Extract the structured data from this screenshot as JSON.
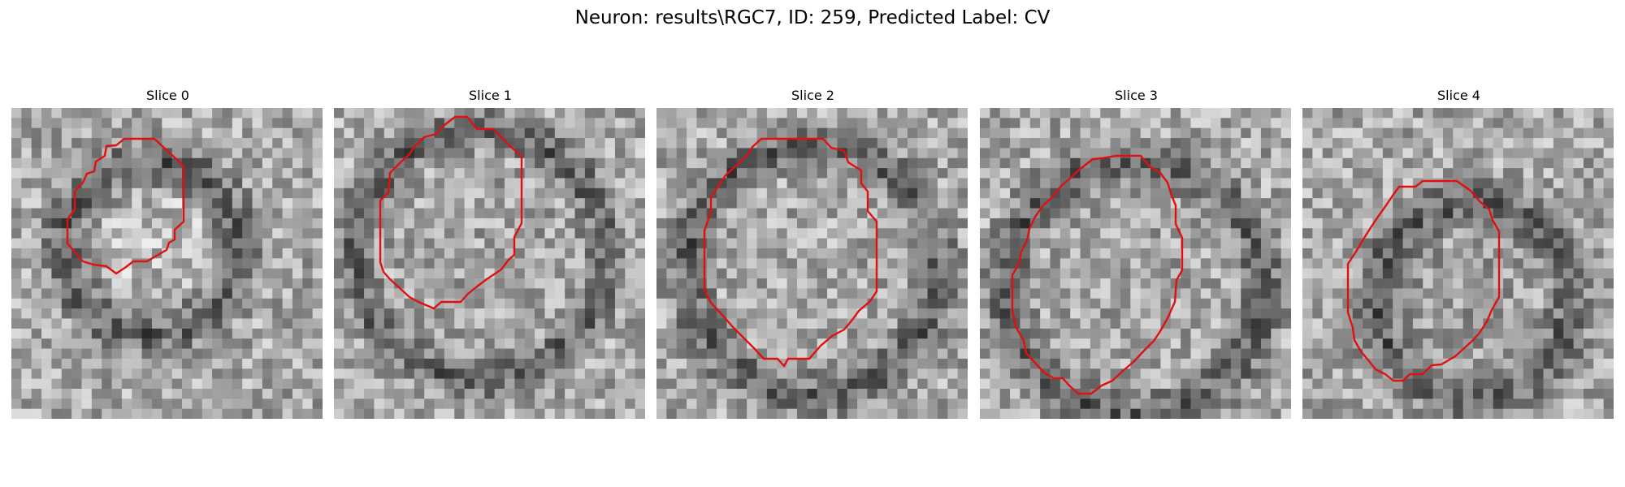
{
  "figure": {
    "title": "Neuron: results\\RGC7, ID: 259, Predicted Label: CV",
    "colormap": "grayscale",
    "contour_color": "#e01010",
    "panels": [
      {
        "title": "Slice 0",
        "contour": "small-irregular-octagon"
      },
      {
        "title": "Slice 1",
        "contour": "large-octagon"
      },
      {
        "title": "Slice 2",
        "contour": "large-octagon"
      },
      {
        "title": "Slice 3",
        "contour": "large-octagon-shifted-down"
      },
      {
        "title": "Slice 4",
        "contour": "medium-octagon"
      }
    ]
  }
}
